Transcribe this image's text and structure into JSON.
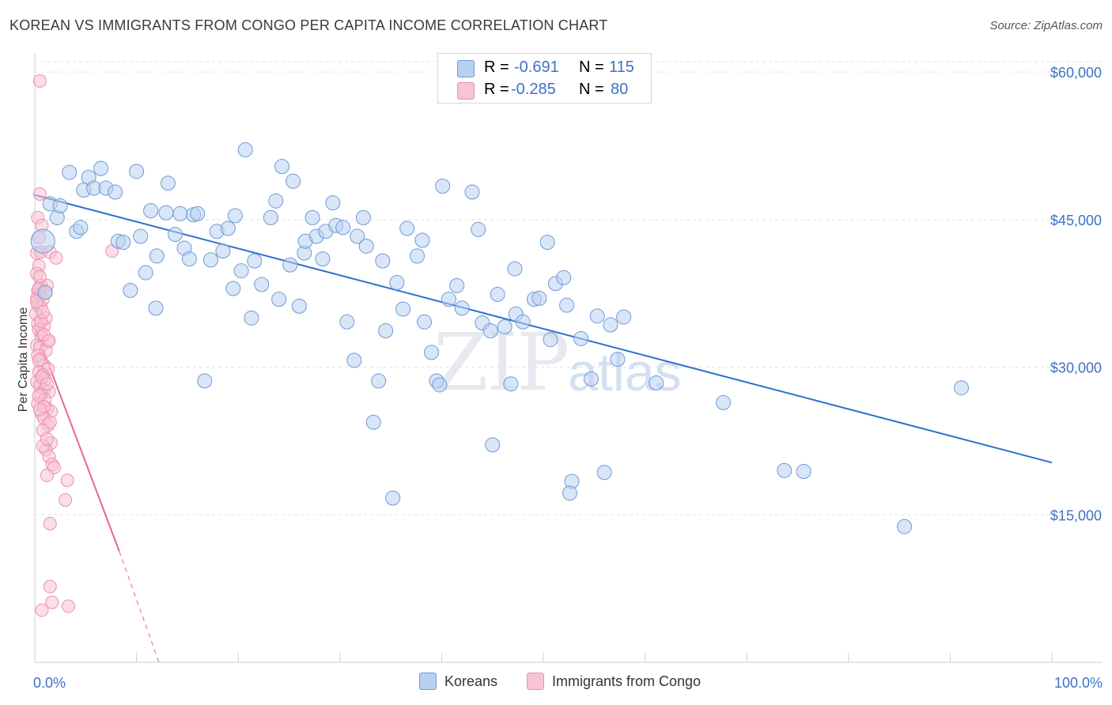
{
  "header": {
    "title": "KOREAN VS IMMIGRANTS FROM CONGO PER CAPITA INCOME CORRELATION CHART",
    "source": "Source: ZipAtlas.com"
  },
  "watermark": {
    "zip": "ZIP",
    "atlas": "atlas"
  },
  "legend_top": {
    "rows": [
      {
        "r_label": "R =",
        "r_value": "-0.691",
        "n_label": "N =",
        "n_value": "115"
      },
      {
        "r_label": "R =",
        "r_value": "-0.285",
        "n_label": "N =",
        "n_value": "80"
      }
    ]
  },
  "legend_bottom": {
    "items": [
      {
        "label": "Koreans"
      },
      {
        "label": "Immigrants from Congo"
      }
    ]
  },
  "colors": {
    "koreans_fill": "#b9d1f1",
    "koreans_stroke": "#6f9ad6",
    "koreans_line": "#2f6fcc",
    "congo_fill": "#f8c3d4",
    "congo_stroke": "#ec8fae",
    "congo_line": "#e8668f",
    "tick_text": "#3d72c7",
    "grid": "#e2e2e2"
  },
  "chart_data": {
    "type": "scatter",
    "title": "KOREAN VS IMMIGRANTS FROM CONGO PER CAPITA INCOME CORRELATION CHART",
    "xlabel": "",
    "ylabel": "Per Capita Income",
    "xlim": [
      0,
      100
    ],
    "ylim": [
      0,
      62500
    ],
    "x_tick_labels": [
      "0.0%",
      "100.0%"
    ],
    "y_ticks": [
      15000,
      30000,
      45000,
      60000
    ],
    "y_tick_labels": [
      "$15,000",
      "$30,000",
      "$45,000",
      "$60,000"
    ],
    "grid": true,
    "legend_position": "top-center",
    "series": [
      {
        "name": "Koreans",
        "r": -0.691,
        "n": 115,
        "trend": {
          "x": [
            0,
            100
          ],
          "y": [
            47500,
            20300
          ]
        },
        "points": [
          [
            0.8,
            42800
          ],
          [
            1.0,
            37600
          ],
          [
            1.5,
            46600
          ],
          [
            2.2,
            45200
          ],
          [
            2.5,
            46400
          ],
          [
            3.4,
            49800
          ],
          [
            4.1,
            43800
          ],
          [
            4.5,
            44200
          ],
          [
            4.8,
            48000
          ],
          [
            5.3,
            49300
          ],
          [
            5.8,
            48200
          ],
          [
            6.5,
            50200
          ],
          [
            7.0,
            48200
          ],
          [
            7.9,
            47800
          ],
          [
            8.2,
            42800
          ],
          [
            8.7,
            42700
          ],
          [
            9.4,
            37800
          ],
          [
            10.0,
            49900
          ],
          [
            10.4,
            43300
          ],
          [
            10.9,
            39600
          ],
          [
            11.4,
            45900
          ],
          [
            11.9,
            36000
          ],
          [
            12.0,
            41300
          ],
          [
            12.9,
            45700
          ],
          [
            13.1,
            48700
          ],
          [
            13.8,
            43500
          ],
          [
            14.3,
            45600
          ],
          [
            14.7,
            42100
          ],
          [
            15.2,
            41000
          ],
          [
            15.6,
            45500
          ],
          [
            16.0,
            45600
          ],
          [
            16.7,
            28600
          ],
          [
            17.3,
            40900
          ],
          [
            17.9,
            43800
          ],
          [
            18.5,
            41800
          ],
          [
            19.0,
            44100
          ],
          [
            19.5,
            38000
          ],
          [
            19.7,
            45400
          ],
          [
            20.3,
            39800
          ],
          [
            20.7,
            52100
          ],
          [
            21.3,
            35000
          ],
          [
            21.6,
            40800
          ],
          [
            22.3,
            38400
          ],
          [
            23.2,
            45200
          ],
          [
            23.7,
            46900
          ],
          [
            24.0,
            36900
          ],
          [
            24.3,
            50400
          ],
          [
            25.1,
            40400
          ],
          [
            25.4,
            48900
          ],
          [
            26.0,
            36200
          ],
          [
            26.5,
            41600
          ],
          [
            26.6,
            42800
          ],
          [
            27.3,
            45200
          ],
          [
            27.7,
            43300
          ],
          [
            28.3,
            41000
          ],
          [
            28.6,
            43800
          ],
          [
            29.3,
            46700
          ],
          [
            29.6,
            44400
          ],
          [
            30.3,
            44200
          ],
          [
            30.7,
            34600
          ],
          [
            31.7,
            43300
          ],
          [
            32.3,
            45200
          ],
          [
            32.6,
            42300
          ],
          [
            33.3,
            24400
          ],
          [
            33.8,
            28600
          ],
          [
            34.2,
            40800
          ],
          [
            34.5,
            33700
          ],
          [
            35.6,
            38600
          ],
          [
            36.2,
            35900
          ],
          [
            36.6,
            44100
          ],
          [
            37.6,
            41300
          ],
          [
            38.1,
            42900
          ],
          [
            38.3,
            34600
          ],
          [
            39.0,
            31500
          ],
          [
            39.5,
            28600
          ],
          [
            39.8,
            28200
          ],
          [
            40.1,
            48400
          ],
          [
            40.7,
            36900
          ],
          [
            41.5,
            38300
          ],
          [
            42.0,
            36000
          ],
          [
            43.0,
            47800
          ],
          [
            43.6,
            44000
          ],
          [
            44.0,
            34500
          ],
          [
            44.8,
            33700
          ],
          [
            45.0,
            22100
          ],
          [
            45.5,
            37400
          ],
          [
            46.2,
            34100
          ],
          [
            46.8,
            28300
          ],
          [
            47.3,
            35400
          ],
          [
            48.0,
            34600
          ],
          [
            49.1,
            36900
          ],
          [
            49.6,
            37000
          ],
          [
            50.4,
            42700
          ],
          [
            50.7,
            32800
          ],
          [
            51.2,
            38500
          ],
          [
            52.0,
            39100
          ],
          [
            52.3,
            36300
          ],
          [
            52.8,
            18400
          ],
          [
            52.6,
            17200
          ],
          [
            53.7,
            32900
          ],
          [
            54.7,
            28800
          ],
          [
            55.3,
            35200
          ],
          [
            56.6,
            34300
          ],
          [
            57.3,
            30800
          ],
          [
            57.9,
            35100
          ],
          [
            61.1,
            28400
          ],
          [
            67.7,
            26400
          ],
          [
            73.7,
            19500
          ],
          [
            75.6,
            19400
          ],
          [
            85.5,
            13800
          ],
          [
            91.1,
            27900
          ],
          [
            35.2,
            16700
          ],
          [
            47.2,
            40000
          ],
          [
            31.4,
            30700
          ],
          [
            56.0,
            19300
          ]
        ]
      },
      {
        "name": "Immigrants from Congo",
        "r": -0.285,
        "n": 80,
        "trend": {
          "x": [
            0,
            8.3
          ],
          "y": [
            34000,
            11300
          ]
        },
        "trend_dashed": {
          "x": [
            8.3,
            12.2
          ],
          "y": [
            11300,
            0
          ]
        },
        "points": [
          [
            0.5,
            59100
          ],
          [
            0.5,
            47600
          ],
          [
            0.3,
            45200
          ],
          [
            0.2,
            41600
          ],
          [
            0.6,
            41700
          ],
          [
            1.5,
            41700
          ],
          [
            2.1,
            41100
          ],
          [
            0.4,
            40300
          ],
          [
            0.2,
            39500
          ],
          [
            0.6,
            38300
          ],
          [
            1.2,
            38300
          ],
          [
            0.3,
            37800
          ],
          [
            0.5,
            37400
          ],
          [
            0.2,
            37000
          ],
          [
            0.8,
            36900
          ],
          [
            0.3,
            36300
          ],
          [
            0.6,
            36100
          ],
          [
            0.1,
            35400
          ],
          [
            0.3,
            34400
          ],
          [
            0.9,
            34200
          ],
          [
            0.4,
            33800
          ],
          [
            0.7,
            33100
          ],
          [
            1.3,
            32600
          ],
          [
            0.2,
            32200
          ],
          [
            0.5,
            32000
          ],
          [
            1.1,
            31700
          ],
          [
            0.3,
            31200
          ],
          [
            0.6,
            30800
          ],
          [
            0.9,
            30200
          ],
          [
            1.3,
            29800
          ],
          [
            0.4,
            29500
          ],
          [
            0.8,
            29200
          ],
          [
            1.0,
            28800
          ],
          [
            0.2,
            28500
          ],
          [
            0.5,
            28100
          ],
          [
            0.9,
            27700
          ],
          [
            1.4,
            27500
          ],
          [
            0.6,
            27200
          ],
          [
            1.0,
            26700
          ],
          [
            0.3,
            26300
          ],
          [
            1.2,
            25800
          ],
          [
            1.6,
            25500
          ],
          [
            0.7,
            25200
          ],
          [
            0.9,
            24800
          ],
          [
            1.3,
            24100
          ],
          [
            0.8,
            23600
          ],
          [
            1.6,
            22300
          ],
          [
            1.1,
            21600
          ],
          [
            1.4,
            20900
          ],
          [
            1.7,
            20100
          ],
          [
            1.9,
            19800
          ],
          [
            1.2,
            19000
          ],
          [
            3.2,
            18500
          ],
          [
            3.0,
            16500
          ],
          [
            1.5,
            14100
          ],
          [
            7.6,
            41800
          ],
          [
            1.5,
            7700
          ],
          [
            1.7,
            6100
          ],
          [
            3.3,
            5700
          ],
          [
            0.7,
            5300
          ],
          [
            0.4,
            43200
          ],
          [
            0.7,
            44400
          ],
          [
            0.5,
            39200
          ],
          [
            1.1,
            35000
          ],
          [
            0.6,
            34700
          ],
          [
            0.9,
            33300
          ],
          [
            1.4,
            32700
          ],
          [
            0.4,
            30700
          ],
          [
            0.7,
            29000
          ],
          [
            1.2,
            28300
          ],
          [
            0.4,
            27100
          ],
          [
            0.9,
            26000
          ],
          [
            1.5,
            24400
          ],
          [
            0.8,
            22000
          ],
          [
            1.2,
            22700
          ],
          [
            0.5,
            25700
          ],
          [
            0.2,
            36700
          ],
          [
            0.4,
            38000
          ],
          [
            1.1,
            37600
          ],
          [
            0.8,
            35600
          ]
        ]
      }
    ]
  }
}
